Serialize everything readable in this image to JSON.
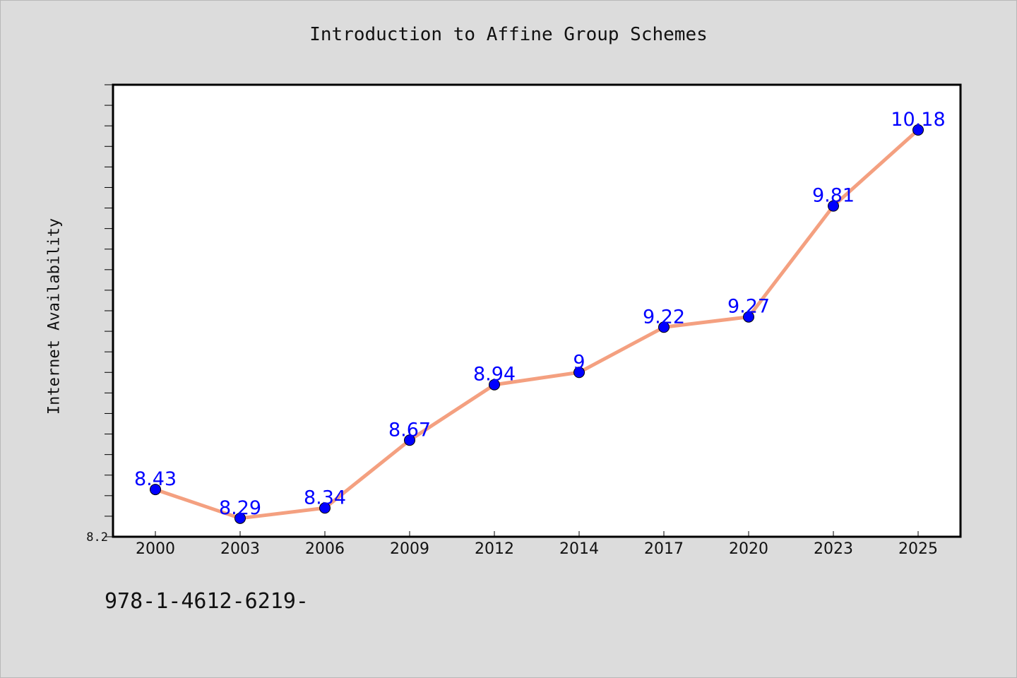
{
  "chart_data": {
    "type": "line",
    "title": "Introduction to Affine Group Schemes",
    "xlabel": "",
    "ylabel": "Internet Availability",
    "categories": [
      "2000",
      "2003",
      "2006",
      "2009",
      "2012",
      "2014",
      "2017",
      "2020",
      "2023",
      "2025"
    ],
    "series": [
      {
        "values": [
          8.43,
          8.29,
          8.34,
          8.67,
          8.94,
          9,
          9.22,
          9.27,
          9.81,
          10.18
        ],
        "data_labels": [
          "8.43",
          "8.29",
          "8.34",
          "8.67",
          "8.94",
          "9",
          "9.22",
          "9.27",
          "9.81",
          "10.18"
        ],
        "line_color": "#f4a080",
        "marker_color": "#0000ff"
      }
    ],
    "ylim": [
      8.2,
      10.4
    ],
    "y_tick_label": "8.2",
    "grid": false,
    "legend": "none"
  },
  "footer_text": "978-1-4612-6219-",
  "colors": {
    "background": "#dcdcdc",
    "plot_area": "#ffffff",
    "line": "#f4a080",
    "marker": "#0000ff",
    "label": "#0000ff"
  }
}
